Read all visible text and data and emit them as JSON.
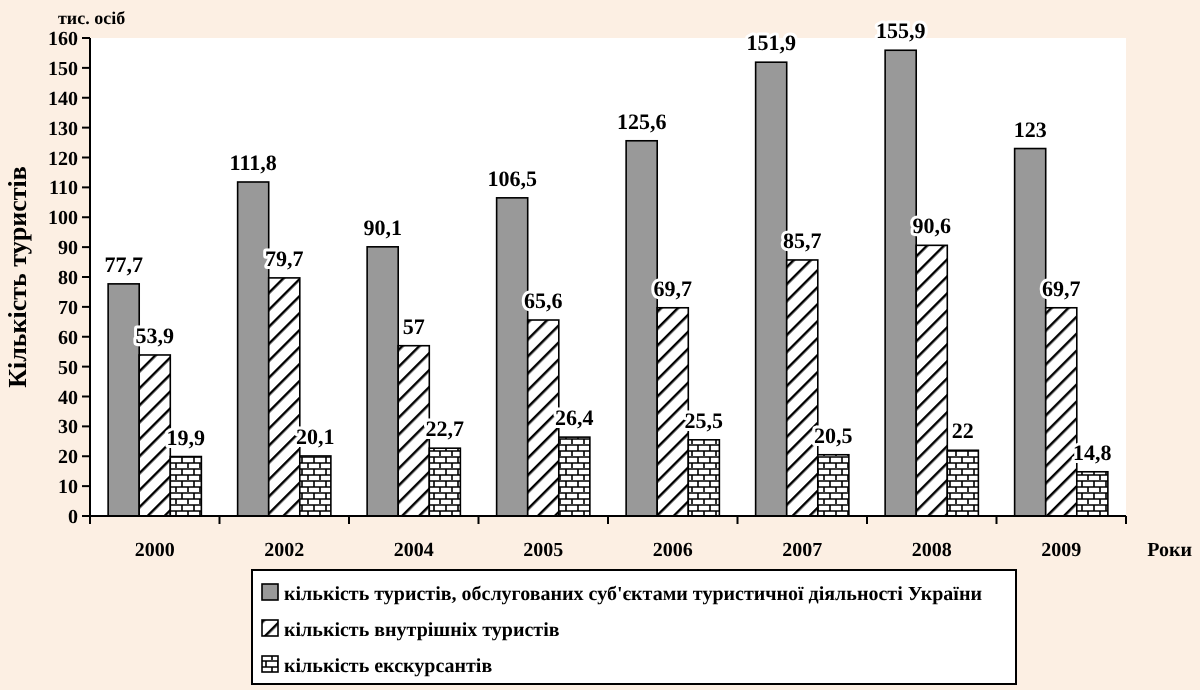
{
  "chart_data": {
    "type": "bar",
    "ylabel": "Кількість туристів",
    "xlabel": "Роки",
    "annotations": [
      "тис. осіб"
    ],
    "categories": [
      "2000",
      "2002",
      "2004",
      "2005",
      "2006",
      "2007",
      "2008",
      "2009"
    ],
    "series": [
      {
        "name": "кількість туристів, обслугованих суб'єктами туристичної діяльності України",
        "color": "#999999",
        "values": [
          77.7,
          111.8,
          90.1,
          106.5,
          125.6,
          151.9,
          155.9,
          123
        ],
        "value_labels": [
          "77,7",
          "111,8",
          "90,1",
          "106,5",
          "125,6",
          "151,9",
          "155,9",
          "123"
        ]
      },
      {
        "name": "кількість внутрішніх туристів",
        "color": "#000000",
        "values": [
          53.9,
          79.7,
          57,
          65.6,
          69.7,
          85.7,
          90.6,
          69.7
        ],
        "value_labels": [
          "53,9",
          "79,7",
          "57",
          "65,6",
          "69,7",
          "85,7",
          "90,6",
          "69,7"
        ]
      },
      {
        "name": "кількість екскурсантів",
        "color": "#000000",
        "values": [
          19.9,
          20.1,
          22.7,
          26.4,
          25.5,
          20.5,
          22,
          14.8
        ],
        "value_labels": [
          "19,9",
          "20,1",
          "22,7",
          "26,4",
          "25,5",
          "20,5",
          "22",
          "14,8"
        ]
      }
    ],
    "ylim": [
      0,
      160
    ],
    "yticks": [
      0,
      10,
      20,
      30,
      40,
      50,
      60,
      70,
      80,
      90,
      100,
      110,
      120,
      130,
      140,
      150,
      160
    ],
    "legend": "bottom",
    "grid": false
  }
}
